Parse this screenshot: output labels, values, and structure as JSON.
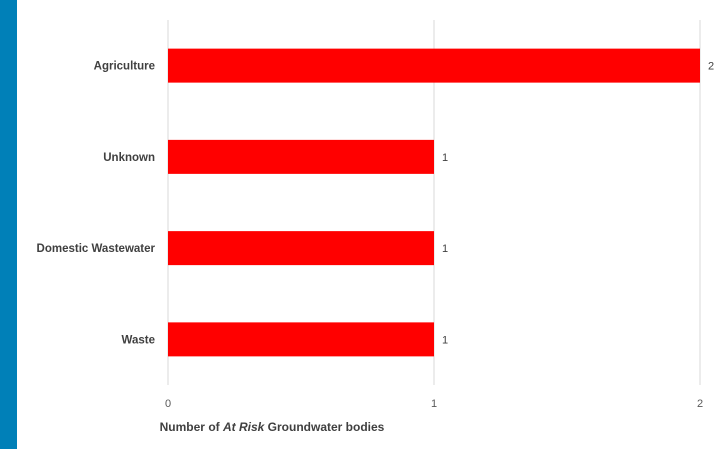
{
  "chart_data": {
    "type": "bar",
    "orientation": "horizontal",
    "categories": [
      "Agriculture",
      "Unknown",
      "Domestic Wastewater",
      "Waste"
    ],
    "values": [
      2,
      1,
      1,
      1
    ],
    "xlabel_parts": [
      "Number of ",
      "At Risk",
      " Groundwater bodies"
    ],
    "xlim": [
      0,
      2
    ],
    "xticks": [
      "0",
      "1",
      "2"
    ],
    "data_labels": [
      "2",
      "1",
      "1",
      "1"
    ],
    "bar_color": "#FF0000",
    "grid": "vertical",
    "legend": "none"
  },
  "colors": {
    "background": "#0080B8",
    "panel": "#FFFFFF",
    "gridline": "#D9D9D9"
  }
}
